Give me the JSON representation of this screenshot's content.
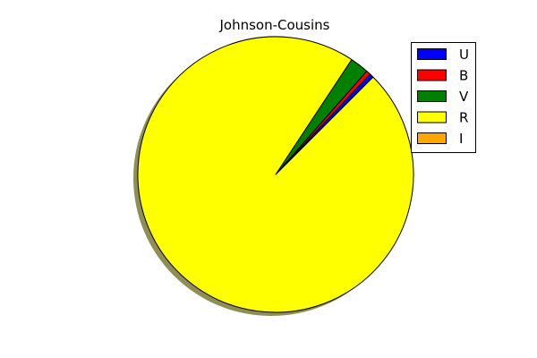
{
  "chart_data": {
    "type": "pie",
    "title": "Johnson-Cousins",
    "categories": [
      "U",
      "B",
      "V",
      "R",
      "I"
    ],
    "values": [
      0.5,
      0.5,
      2.2,
      96.8,
      0.0
    ],
    "colors": [
      "#0000ff",
      "#ff0000",
      "#008000",
      "#ffff00",
      "#ffa500"
    ],
    "start_angle_deg": 45,
    "direction": "counterclockwise",
    "shadow": true,
    "legend": {
      "position": "top-right",
      "labels": [
        "U",
        "B",
        "V",
        "R",
        "I"
      ]
    }
  }
}
